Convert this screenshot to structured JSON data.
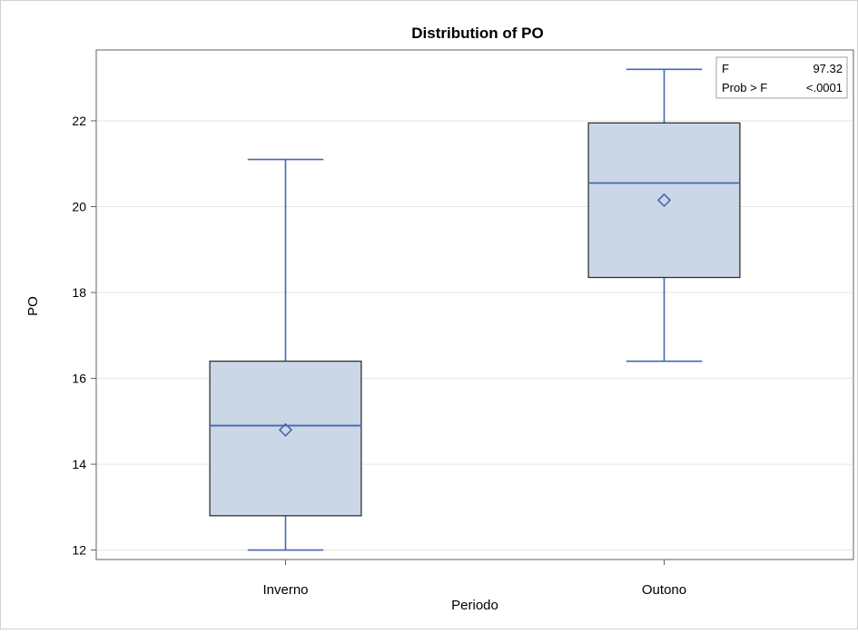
{
  "chart_data": {
    "type": "box",
    "title": "Distribution of PO",
    "xlabel": "Periodo",
    "ylabel": "PO",
    "categories": [
      "Inverno",
      "Outono"
    ],
    "ylim": [
      11.78,
      23.65
    ],
    "yticks": [
      12,
      14,
      16,
      18,
      20,
      22
    ],
    "grid": true,
    "boxes": [
      {
        "category": "Inverno",
        "min": 12.0,
        "q1": 12.8,
        "median": 14.9,
        "mean": 14.8,
        "q3": 16.4,
        "max": 21.1
      },
      {
        "category": "Outono",
        "min": 16.4,
        "q1": 18.35,
        "median": 20.55,
        "mean": 20.15,
        "q3": 21.95,
        "max": 23.2
      }
    ],
    "stats_table": {
      "rows": [
        {
          "label": "F",
          "value": "97.32"
        },
        {
          "label": "Prob > F",
          "value": "<.0001"
        }
      ],
      "placement": "top-right"
    },
    "colors": {
      "box_fill": "#cbd7e7",
      "box_stroke": "#333333",
      "whisker": "#4468ad",
      "grid": "#e6e6e6"
    }
  }
}
